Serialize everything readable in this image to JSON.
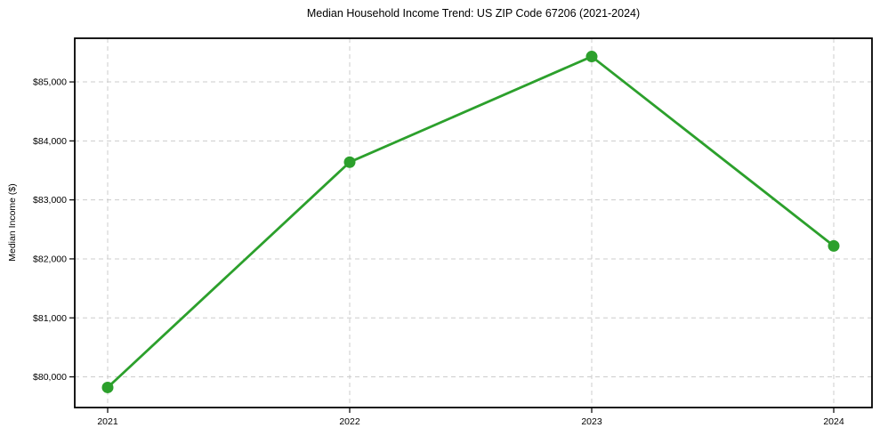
{
  "figure": {
    "background": "#ffffff"
  },
  "chart_data": {
    "type": "line",
    "title": "Median Household Income Trend: US ZIP Code 67206 (2021-2024)",
    "xlabel": "",
    "ylabel": "Median Income ($)",
    "categories": [
      "2021",
      "2022",
      "2023",
      "2024"
    ],
    "series": [
      {
        "values": [
          79820,
          83640,
          85430,
          82220
        ]
      }
    ],
    "ylim": [
      79480,
      85740
    ],
    "yticks": {
      "values": [
        80000,
        81000,
        82000,
        83000,
        84000,
        85000
      ],
      "labels": [
        "$80,000",
        "$81,000",
        "$82,000",
        "$83,000",
        "$84,000",
        "$85,000"
      ]
    },
    "grid": {
      "horizontal": true,
      "vertical": true,
      "style": "dashed"
    },
    "legend_position": "none",
    "marker": "circle"
  },
  "style": {
    "line_color": "#2ca02c",
    "grid_color": "#cccccc",
    "axis_color": "#000000",
    "text_color": "#000000"
  }
}
